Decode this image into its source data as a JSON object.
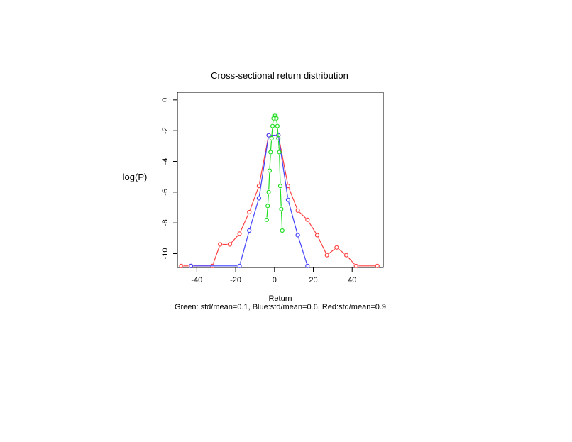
{
  "chart_data": {
    "type": "line",
    "title": "Cross-sectional return distribution",
    "xlabel": "Return",
    "ylabel": "log(P)",
    "caption": "Green: std/mean=0.1, Blue:std/mean=0.6, Red:std/mean=0.9",
    "xlim": [
      -50,
      56
    ],
    "ylim": [
      -10.9,
      0.5
    ],
    "xticks": [
      -40,
      -20,
      0,
      20,
      40
    ],
    "yticks": [
      0,
      -2,
      -4,
      -6,
      -8,
      -10
    ],
    "grid": false,
    "series": [
      {
        "color": "#ff4040",
        "x": [
          -48,
          -43,
          -32,
          -28,
          -23,
          -18,
          -13,
          -8,
          -3,
          2,
          7,
          12,
          17,
          22,
          27,
          32,
          37,
          42,
          53
        ],
        "y": [
          -10.8,
          -10.8,
          -10.8,
          -9.4,
          -9.4,
          -8.7,
          -7.3,
          -5.6,
          -2.3,
          -2.3,
          -5.6,
          -7.2,
          -7.8,
          -8.8,
          -10.1,
          -9.6,
          -10.1,
          -10.8,
          -10.8
        ]
      },
      {
        "color": "#4040ff",
        "x": [
          -43,
          -18,
          -13,
          -8,
          -3,
          2,
          7,
          12,
          17
        ],
        "y": [
          -10.8,
          -10.8,
          -8.5,
          -6.4,
          -2.3,
          -2.3,
          -6.5,
          -8.8,
          -10.8
        ]
      },
      {
        "color": "#22dd22",
        "x": [
          -4,
          -3.5,
          -3,
          -2.5,
          -2,
          -1.5,
          -1,
          -0.5,
          0,
          0.5,
          1,
          1.5,
          2,
          2.5,
          3,
          3.5,
          4
        ],
        "y": [
          -7.8,
          -6.9,
          -6.0,
          -4.6,
          -3.4,
          -2.5,
          -1.7,
          -1.2,
          -1.0,
          -1.0,
          -1.2,
          -1.7,
          -2.5,
          -3.4,
          -5.6,
          -7.1,
          -8.5
        ]
      }
    ]
  }
}
